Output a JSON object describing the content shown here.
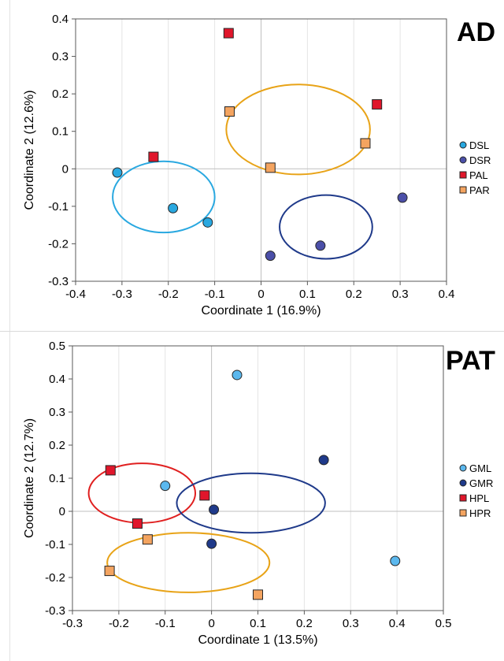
{
  "chart_data": [
    {
      "type": "scatter",
      "title": "AD",
      "xlabel": "Coordinate 1 (16.9%)",
      "ylabel": "Coordinate 2 (12.6%)",
      "xlim": [
        -0.4,
        0.4
      ],
      "ylim": [
        -0.3,
        0.4
      ],
      "xticks": [
        -0.4,
        -0.3,
        -0.2,
        -0.1,
        0,
        0.1,
        0.2,
        0.3,
        0.4
      ],
      "yticks": [
        -0.3,
        -0.2,
        -0.1,
        0,
        0.1,
        0.2,
        0.3,
        0.4
      ],
      "x_tick_labels": [
        "-0.4",
        "-0.3",
        "-0.2",
        "-0.1",
        "0",
        "0.1",
        "0.2",
        "0.3",
        "0.4"
      ],
      "y_tick_labels": [
        "-0.3",
        "-0.2",
        "-0.1",
        "0",
        "0.1",
        "0.2",
        "0.3",
        "0.4"
      ],
      "grid": "vertical",
      "legend_position": "right",
      "series": [
        {
          "name": "DSL",
          "marker": "circle",
          "color": "#29A8E0",
          "points": [
            [
              -0.31,
              -0.01
            ],
            [
              -0.19,
              -0.105
            ],
            [
              -0.115,
              -0.143
            ]
          ]
        },
        {
          "name": "DSR",
          "marker": "circle",
          "color": "#4B4FA8",
          "points": [
            [
              0.02,
              -0.232
            ],
            [
              0.128,
              -0.205
            ],
            [
              0.305,
              -0.077
            ]
          ]
        },
        {
          "name": "PAL",
          "marker": "square",
          "color": "#E0162B",
          "points": [
            [
              -0.232,
              0.032
            ],
            [
              -0.07,
              0.362
            ],
            [
              0.25,
              0.172
            ]
          ]
        },
        {
          "name": "PAR",
          "marker": "square",
          "color": "#F4A460",
          "points": [
            [
              -0.068,
              0.153
            ],
            [
              0.02,
              0.003
            ],
            [
              0.225,
              0.068
            ]
          ]
        }
      ],
      "ellipses": [
        {
          "color": "#29A8E0",
          "center": [
            -0.21,
            -0.075
          ],
          "rx": 0.11,
          "ry": 0.095
        },
        {
          "color": "#1F3A8A",
          "center": [
            0.14,
            -0.155
          ],
          "rx": 0.1,
          "ry": 0.085
        },
        {
          "color": "#E8A317",
          "center": [
            0.08,
            0.105
          ],
          "rx": 0.155,
          "ry": 0.12
        }
      ]
    },
    {
      "type": "scatter",
      "title": "PAT",
      "xlabel": "Coordinate 1 (13.5%)",
      "ylabel": "Coordinate 2 (12.7%)",
      "xlim": [
        -0.3,
        0.5
      ],
      "ylim": [
        -0.3,
        0.5
      ],
      "xticks": [
        -0.3,
        -0.2,
        -0.1,
        0,
        0.1,
        0.2,
        0.3,
        0.4,
        0.5
      ],
      "yticks": [
        -0.3,
        -0.2,
        -0.1,
        0,
        0.1,
        0.2,
        0.3,
        0.4,
        0.5
      ],
      "x_tick_labels": [
        "-0.3",
        "-0.2",
        "-0.1",
        "0",
        "0.1",
        "0.2",
        "0.3",
        "0.4",
        "0.5"
      ],
      "y_tick_labels": [
        "-0.3",
        "-0.2",
        "-0.1",
        "0",
        "0.1",
        "0.2",
        "0.3",
        "0.4",
        "0.5"
      ],
      "grid": "vertical",
      "legend_position": "right",
      "series": [
        {
          "name": "GML",
          "marker": "circle",
          "color": "#5BB8EE",
          "points": [
            [
              0.055,
              0.412
            ],
            [
              -0.1,
              0.077
            ],
            [
              0.396,
              -0.15
            ]
          ]
        },
        {
          "name": "GMR",
          "marker": "circle",
          "color": "#1F3A8A",
          "points": [
            [
              0.005,
              0.005
            ],
            [
              0.0,
              -0.098
            ],
            [
              0.242,
              0.155
            ]
          ]
        },
        {
          "name": "HPL",
          "marker": "square",
          "color": "#E0162B",
          "points": [
            [
              -0.218,
              0.124
            ],
            [
              -0.16,
              -0.037
            ],
            [
              -0.015,
              0.048
            ]
          ]
        },
        {
          "name": "HPR",
          "marker": "square",
          "color": "#F4A460",
          "points": [
            [
              -0.138,
              -0.085
            ],
            [
              -0.22,
              -0.18
            ],
            [
              0.1,
              -0.252
            ]
          ]
        }
      ],
      "ellipses": [
        {
          "color": "#E02020",
          "center": [
            -0.15,
            0.055
          ],
          "rx": 0.115,
          "ry": 0.09
        },
        {
          "color": "#1F3A8A",
          "center": [
            0.085,
            0.025
          ],
          "rx": 0.16,
          "ry": 0.09
        },
        {
          "color": "#E8A317",
          "center": [
            -0.05,
            -0.155
          ],
          "rx": 0.175,
          "ry": 0.09
        }
      ]
    }
  ]
}
